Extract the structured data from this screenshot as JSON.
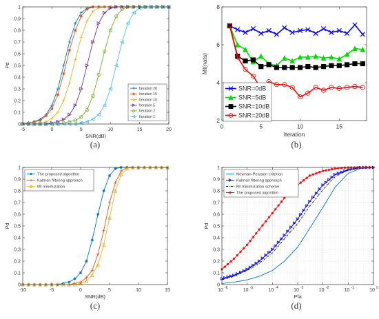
{
  "chart_data": [
    {
      "panel": "(a)",
      "type": "line",
      "xlabel": "SNR(dB)",
      "ylabel": "Pd",
      "xlim": [
        -5,
        20
      ],
      "ylim": [
        0,
        1
      ],
      "xticks": [
        -5,
        0,
        5,
        10,
        15,
        20
      ],
      "yticks": [
        0,
        0.1,
        0.2,
        0.3,
        0.4,
        0.5,
        0.6,
        0.7,
        0.8,
        0.9,
        1
      ],
      "legend_position": "bottom-right",
      "x": [
        -5,
        -4,
        -3,
        -2,
        -1,
        0,
        1,
        2,
        3,
        4,
        5,
        6,
        7,
        8,
        9,
        10,
        11,
        12,
        13,
        14,
        15,
        16,
        17,
        18,
        19,
        20
      ],
      "series": [
        {
          "name": "Iteration 20",
          "color": "#0072bd",
          "marker": "plus",
          "values": [
            0,
            0.01,
            0.02,
            0.04,
            0.08,
            0.16,
            0.3,
            0.5,
            0.7,
            0.86,
            0.95,
            0.99,
            1,
            1,
            1,
            1,
            1,
            1,
            1,
            1,
            1,
            1,
            1,
            1,
            1,
            1
          ]
        },
        {
          "name": "Iteration 15",
          "color": "#d95319",
          "marker": "star",
          "values": [
            0,
            0.01,
            0.02,
            0.03,
            0.07,
            0.13,
            0.25,
            0.43,
            0.63,
            0.8,
            0.92,
            0.98,
            1,
            1,
            1,
            1,
            1,
            1,
            1,
            1,
            1,
            1,
            1,
            1,
            1,
            1
          ]
        },
        {
          "name": "Iteration 10",
          "color": "#edb120",
          "marker": "plus",
          "values": [
            0,
            0,
            0,
            0.01,
            0.02,
            0.05,
            0.1,
            0.2,
            0.35,
            0.55,
            0.74,
            0.88,
            0.96,
            0.99,
            1,
            1,
            1,
            1,
            1,
            1,
            1,
            1,
            1,
            1,
            1,
            1
          ]
        },
        {
          "name": "Iteration 5",
          "color": "#7e2f8e",
          "marker": "triangle-right",
          "values": [
            0,
            0,
            0,
            0,
            0,
            0.01,
            0.02,
            0.04,
            0.08,
            0.16,
            0.3,
            0.5,
            0.7,
            0.86,
            0.95,
            0.99,
            1,
            1,
            1,
            1,
            1,
            1,
            1,
            1,
            1,
            1
          ]
        },
        {
          "name": "Iteration 2",
          "color": "#77ac30",
          "marker": "circle",
          "values": [
            0,
            0,
            0,
            0,
            0,
            0,
            0,
            0.01,
            0.02,
            0.03,
            0.06,
            0.12,
            0.24,
            0.42,
            0.62,
            0.8,
            0.92,
            0.98,
            1,
            1,
            1,
            1,
            1,
            1,
            1,
            1
          ]
        },
        {
          "name": "Iteration 1",
          "color": "#4dbeee",
          "marker": "triangle-left",
          "values": [
            0,
            0,
            0,
            0,
            0,
            0,
            0,
            0,
            0,
            0,
            0.01,
            0.02,
            0.04,
            0.08,
            0.16,
            0.3,
            0.5,
            0.7,
            0.86,
            0.95,
            0.99,
            1,
            1,
            1,
            1,
            1
          ]
        }
      ]
    },
    {
      "panel": "(b)",
      "type": "line",
      "xlabel": "Iteration",
      "ylabel": "MI(nats)",
      "xlim": [
        0,
        18.5
      ],
      "ylim": [
        2,
        8
      ],
      "xticks": [
        0,
        5,
        10,
        15
      ],
      "yticks": [
        2,
        4,
        6,
        8
      ],
      "legend_position": "bottom-left",
      "x": [
        1,
        2,
        3,
        4,
        5,
        6,
        7,
        8,
        9,
        10,
        11,
        12,
        13,
        14,
        15,
        16,
        17,
        18
      ],
      "series": [
        {
          "name": "SNR=0dB",
          "color": "#0000ff",
          "marker": "x",
          "values": [
            7.0,
            6.8,
            6.65,
            6.85,
            6.6,
            6.75,
            6.55,
            6.9,
            6.65,
            6.75,
            6.8,
            6.6,
            6.85,
            6.65,
            6.75,
            6.6,
            7.05,
            6.55
          ]
        },
        {
          "name": "SNR=5dB",
          "color": "#00dd00",
          "marker": "triangle-up",
          "values": [
            7.0,
            6.0,
            5.75,
            5.1,
            5.4,
            5.0,
            4.9,
            5.3,
            5.15,
            5.35,
            5.35,
            5.4,
            5.3,
            5.35,
            5.25,
            5.5,
            5.8,
            5.75
          ]
        },
        {
          "name": "SNR=10dB",
          "color": "#000000",
          "marker": "square",
          "values": [
            7.0,
            5.4,
            5.15,
            5.2,
            4.85,
            4.95,
            4.8,
            4.8,
            4.8,
            4.8,
            4.85,
            4.8,
            4.85,
            4.9,
            4.9,
            4.95,
            5.0,
            5.0
          ]
        },
        {
          "name": "SNR=20dB",
          "color": "#ff0000",
          "marker": "circle",
          "values": [
            7.0,
            5.35,
            4.7,
            4.35,
            3.7,
            4.05,
            3.9,
            3.9,
            3.75,
            3.25,
            3.45,
            3.75,
            3.6,
            3.75,
            3.7,
            3.75,
            3.8,
            3.75
          ]
        }
      ]
    },
    {
      "panel": "(c)",
      "type": "line",
      "xlabel": "SNR(dB)",
      "ylabel": "Pd",
      "xlim": [
        -10,
        15
      ],
      "ylim": [
        0,
        1
      ],
      "xticks": [
        -10,
        -5,
        0,
        5,
        10,
        15
      ],
      "yticks": [
        0,
        0.1,
        0.2,
        0.3,
        0.4,
        0.5,
        0.6,
        0.7,
        0.8,
        0.9,
        1
      ],
      "legend_position": "top-left",
      "x": [
        -10,
        -9,
        -8,
        -7,
        -6,
        -5,
        -4,
        -3,
        -2,
        -1,
        0,
        1,
        2,
        3,
        4,
        5,
        6,
        7,
        8,
        9,
        10,
        11,
        12,
        13,
        14,
        15
      ],
      "series": [
        {
          "name": "The proposed algorithm",
          "color": "#0072bd",
          "marker": "star",
          "values": [
            0,
            0,
            0,
            0,
            0,
            0,
            0,
            0.01,
            0.02,
            0.05,
            0.1,
            0.2,
            0.38,
            0.6,
            0.8,
            0.93,
            0.99,
            1,
            1,
            1,
            1,
            1,
            1,
            1,
            1,
            1
          ]
        },
        {
          "name": "Kalman filtering approach",
          "color": "#d95319",
          "marker": "plus",
          "values": [
            0,
            0,
            0,
            0,
            0,
            0,
            0,
            0,
            0,
            0.01,
            0.02,
            0.06,
            0.12,
            0.26,
            0.46,
            0.7,
            0.87,
            0.97,
            1,
            1,
            1,
            1,
            1,
            1,
            1,
            1
          ]
        },
        {
          "name": "MI minimization",
          "color": "#edb120",
          "marker": "triangle-up",
          "values": [
            0,
            0,
            0,
            0,
            0,
            0,
            0,
            0,
            0,
            0,
            0.01,
            0.03,
            0.08,
            0.17,
            0.34,
            0.57,
            0.8,
            0.94,
            0.99,
            1,
            1,
            1,
            1,
            1,
            1,
            1
          ]
        }
      ]
    },
    {
      "panel": "(d)",
      "type": "line",
      "xlabel": "Pfa",
      "ylabel": "Pd",
      "xscale": "log",
      "xlim": [
        1e-06,
        1
      ],
      "ylim": [
        0,
        1
      ],
      "xticks": [
        1e-06,
        1e-05,
        0.0001,
        0.001,
        0.01,
        0.1,
        1
      ],
      "xtick_labels": [
        {
          "base": "10",
          "exp": "-6"
        },
        {
          "base": "10",
          "exp": "-5"
        },
        {
          "base": "10",
          "exp": "-4"
        },
        {
          "base": "10",
          "exp": "-3"
        },
        {
          "base": "10",
          "exp": "-2"
        },
        {
          "base": "10",
          "exp": "-1"
        },
        {
          "base": "10",
          "exp": "0"
        }
      ],
      "yticks": [
        0,
        0.1,
        0.2,
        0.3,
        0.4,
        0.5,
        0.6,
        0.7,
        0.8,
        0.9,
        1
      ],
      "grid": true,
      "legend_position": "top-left",
      "x": [
        1e-06,
        3e-06,
        1e-05,
        3e-05,
        0.0001,
        0.0003,
        0.001,
        0.003,
        0.01,
        0.03,
        0.1,
        0.3,
        1
      ],
      "series": [
        {
          "name": "Neyman-Pearson criterion",
          "color": "#0072bd",
          "marker": "none",
          "values": [
            0.01,
            0.02,
            0.04,
            0.07,
            0.12,
            0.2,
            0.32,
            0.48,
            0.66,
            0.83,
            0.95,
            0.99,
            1
          ]
        },
        {
          "name": "Kalman filtering approach",
          "color": "#0000ff",
          "marker": "triangle-right",
          "values": [
            0.05,
            0.08,
            0.13,
            0.2,
            0.3,
            0.42,
            0.56,
            0.71,
            0.85,
            0.94,
            0.98,
            1,
            1
          ]
        },
        {
          "name": "MI minimization scheme",
          "color": "#000000",
          "marker": "none",
          "values": [
            0.04,
            0.07,
            0.12,
            0.18,
            0.27,
            0.39,
            0.52,
            0.67,
            0.81,
            0.92,
            0.98,
            1,
            1
          ]
        },
        {
          "name": "The proposed algorithm",
          "color": "#ff0000",
          "marker": "star",
          "values": [
            0.13,
            0.22,
            0.34,
            0.47,
            0.61,
            0.74,
            0.85,
            0.93,
            0.97,
            0.99,
            1,
            1,
            1
          ]
        }
      ]
    }
  ]
}
